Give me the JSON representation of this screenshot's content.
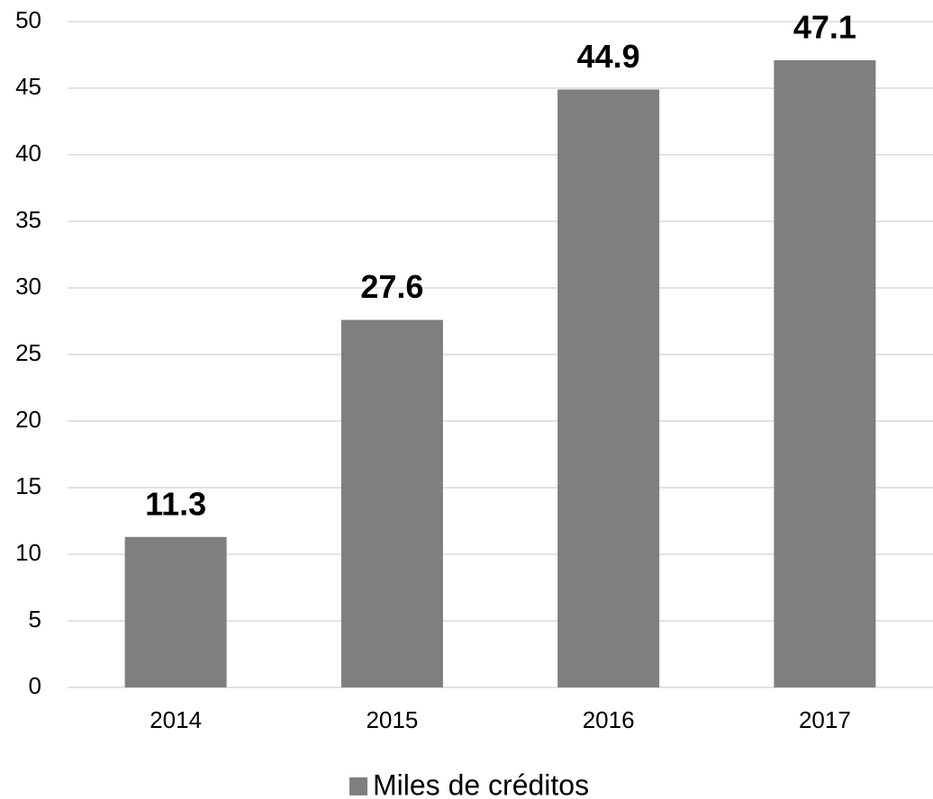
{
  "chart_data": {
    "type": "bar",
    "categories": [
      "2014",
      "2015",
      "2016",
      "2017"
    ],
    "series": [
      {
        "name": "Miles de créditos",
        "color": "#7f7f7f",
        "values": [
          11.3,
          27.6,
          44.9,
          47.1
        ]
      }
    ],
    "ylim": [
      0,
      50
    ],
    "yticks": [
      0,
      5,
      10,
      15,
      20,
      25,
      30,
      35,
      40,
      45,
      50
    ],
    "grid": true,
    "legend": "bottom",
    "data_labels": true
  }
}
